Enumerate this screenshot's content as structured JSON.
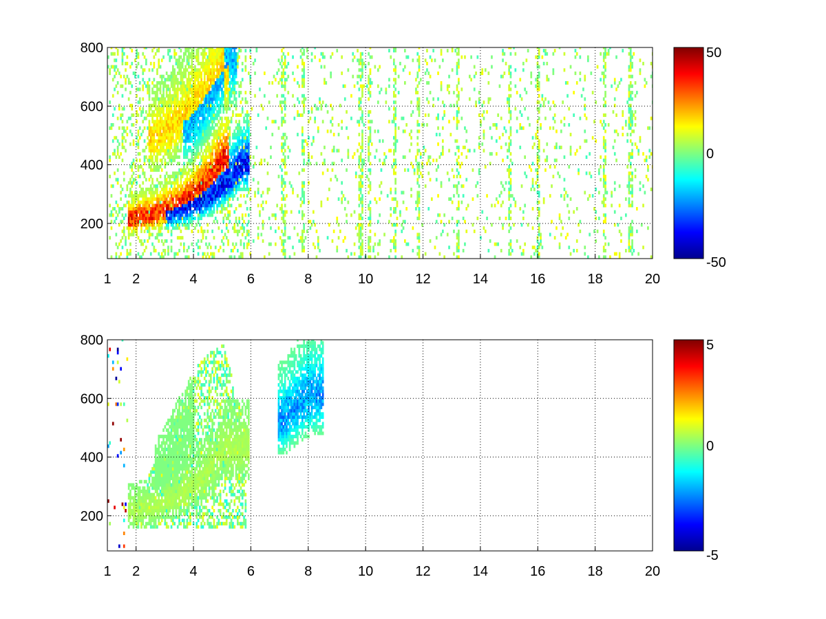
{
  "chart_data": [
    {
      "type": "heatmap",
      "panel": "top",
      "xlim": [
        1,
        20
      ],
      "ylim": [
        80,
        800
      ],
      "x_ticks": [
        1,
        2,
        4,
        6,
        8,
        10,
        12,
        14,
        16,
        18,
        20
      ],
      "x_tick_labels": [
        "1",
        "2",
        "4",
        "6",
        "8",
        "10",
        "12",
        "14",
        "16",
        "18",
        "20"
      ],
      "y_ticks": [
        200,
        400,
        600,
        800
      ],
      "y_tick_labels": [
        "200",
        "400",
        "600",
        "800"
      ],
      "grid": true,
      "colormap": "jet",
      "clim": [
        -50,
        50
      ],
      "colorbar_ticks": [
        -50,
        0,
        50
      ],
      "colorbar_tick_labels": [
        "-50",
        "0",
        "50"
      ],
      "features": [
        {
          "description": "positive ridge",
          "x": [
            1.9,
            2.5,
            3,
            3.5,
            4,
            4.5,
            5
          ],
          "y": [
            210,
            222,
            240,
            262,
            295,
            345,
            420
          ],
          "value": 38
        },
        {
          "description": "negative ridge",
          "x": [
            3.2,
            3.7,
            4.2,
            4.7,
            5.2,
            5.7
          ],
          "y": [
            235,
            250,
            270,
            300,
            345,
            400
          ],
          "value": -40
        },
        {
          "description": "upper positive arm",
          "x": [
            2.6,
            3.2,
            3.8,
            4.4,
            5
          ],
          "y": [
            480,
            520,
            580,
            650,
            720
          ],
          "value": 18
        },
        {
          "description": "upper negative arm",
          "x": [
            3.8,
            4.3,
            4.8,
            5.3
          ],
          "y": [
            520,
            590,
            680,
            760
          ],
          "value": -22
        }
      ],
      "vertical_streaks": [
        7.1,
        7.8,
        9.8,
        10.1,
        11.0,
        11.8,
        13.2,
        15.0,
        16.0,
        18.3,
        19.2
      ]
    },
    {
      "type": "heatmap",
      "panel": "bottom",
      "xlim": [
        1,
        20
      ],
      "ylim": [
        80,
        800
      ],
      "x_ticks": [
        1,
        2,
        4,
        6,
        8,
        10,
        12,
        14,
        16,
        18,
        20
      ],
      "x_tick_labels": [
        "1",
        "2",
        "4",
        "6",
        "8",
        "10",
        "12",
        "14",
        "16",
        "18",
        "20"
      ],
      "y_ticks": [
        200,
        400,
        600,
        800
      ],
      "y_tick_labels": [
        "200",
        "400",
        "600",
        "800"
      ],
      "grid": true,
      "colormap": "jet",
      "clim": [
        -5,
        5
      ],
      "colorbar_ticks": [
        -5,
        0,
        5
      ],
      "colorbar_tick_labels": [
        "-5",
        "0",
        "5"
      ],
      "features": [
        {
          "description": "main near-zero band",
          "x": [
            1.9,
            2.5,
            3,
            3.5,
            4,
            4.5,
            5,
            5.7
          ],
          "y": [
            210,
            222,
            240,
            262,
            295,
            345,
            420,
            420
          ],
          "value": 0.5
        },
        {
          "description": "noisy mixed region",
          "x": [
            2.8,
            3.3,
            3.8
          ],
          "y": [
            330,
            400,
            470
          ],
          "value": 0
        },
        {
          "description": "isolated blue points",
          "x": [
            7.1,
            7.8,
            8.3
          ],
          "y": [
            520,
            590,
            610
          ],
          "value": -2.5
        }
      ]
    }
  ]
}
